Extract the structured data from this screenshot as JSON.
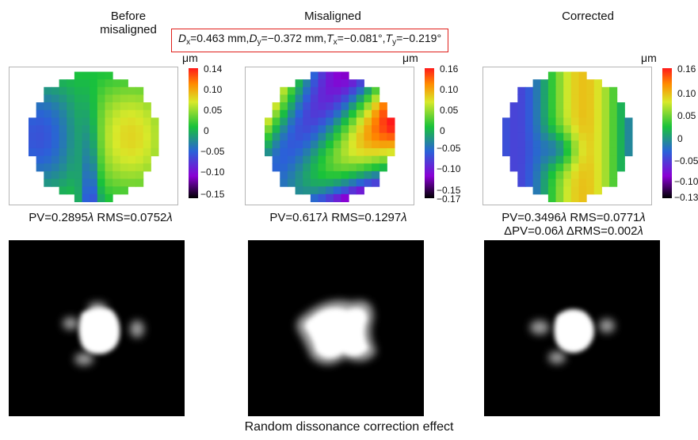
{
  "columns": [
    {
      "id": "before",
      "title_lines": [
        "Before",
        "misaligned"
      ],
      "unit": "μm",
      "colorbar_ticks": [
        "0.14",
        "0.10",
        "0.05",
        "0",
        "−0.05",
        "−0.10",
        "−0.15"
      ],
      "pv_label": "PV=0.2895",
      "rms_label": "RMS=0.0752",
      "lambda": "λ",
      "extra": null
    },
    {
      "id": "misaligned",
      "title_lines": [
        "Misaligned"
      ],
      "unit": "μm",
      "colorbar_ticks": [
        "0.16",
        "0.10",
        "0.05",
        "0",
        "−0.05",
        "−0.10",
        "−0.15",
        "−0.17"
      ],
      "pv_label": "PV=0.617",
      "rms_label": "RMS=0.1297",
      "lambda": "λ",
      "extra": null
    },
    {
      "id": "corrected",
      "title_lines": [
        "Corrected"
      ],
      "unit": "μm",
      "colorbar_ticks": [
        "0.16",
        "0.10",
        "0.05",
        "0",
        "−0.05",
        "−0.10",
        "−0.13"
      ],
      "pv_label": "PV=0.3496",
      "rms_label": "RMS=0.0771",
      "lambda": "λ",
      "extra": {
        "dpv_label": "ΔPV=0.06",
        "drms_label": "ΔRMS=0.002"
      }
    }
  ],
  "params": {
    "dx_sym": "D",
    "dx_sub": "x",
    "dx_val": "=0.463 mm,",
    "dy_sym": "D",
    "dy_sub": "y",
    "dy_val": "=−0.372 mm,",
    "tx_sym": "T",
    "tx_sub": "x",
    "tx_val": "=−0.081°,",
    "ty_sym": "T",
    "ty_sub": "y",
    "ty_val": "=−0.219°"
  },
  "caption": "Random dissonance correction effect",
  "colors": {
    "param_box_border": "#e0201b",
    "colormap": [
      "#000000",
      "#8a00d4",
      "#2a62d8",
      "#19c23a",
      "#d8e92a",
      "#ff8a00",
      "#ff1a1a"
    ]
  }
}
